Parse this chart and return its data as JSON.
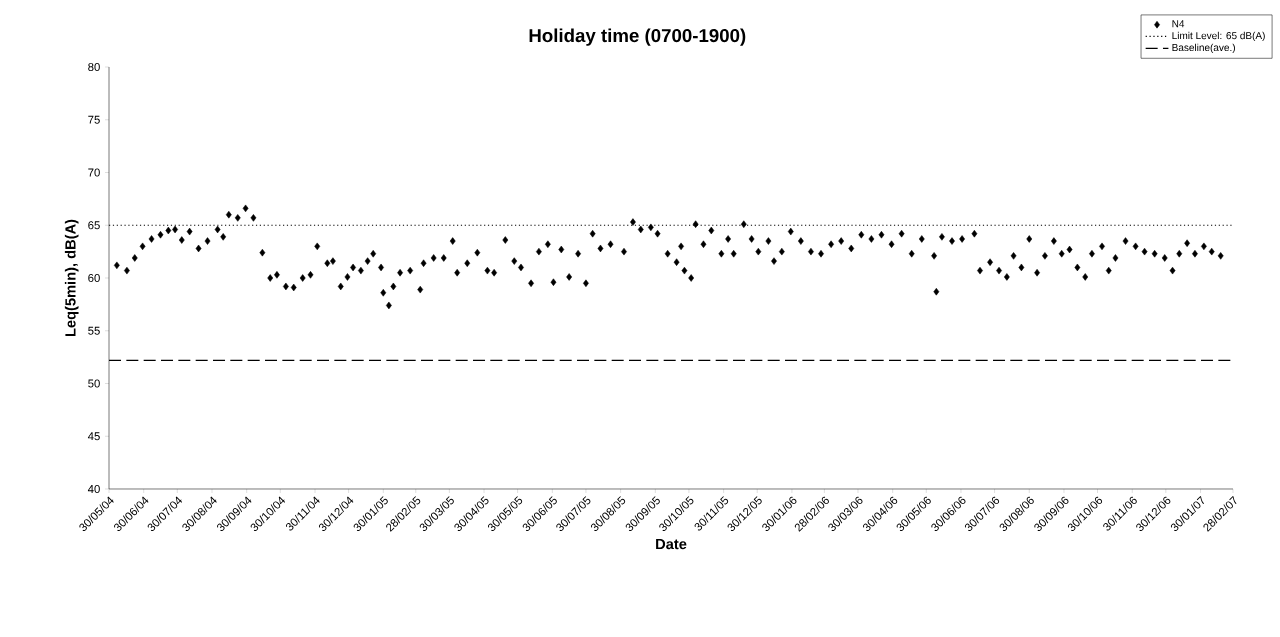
{
  "chart_data": {
    "type": "scatter",
    "title": "Holiday time (0700-1900)",
    "xlabel": "Date",
    "ylabel": "Leq(5min), dB(A)",
    "xlim": [
      "2004-05-30",
      "2007-02-28"
    ],
    "xticks": [
      {
        "value": "2004-05-30",
        "label": "30/05/04"
      },
      {
        "value": "2004-06-30",
        "label": "30/06/04"
      },
      {
        "value": "2004-07-30",
        "label": "30/07/04"
      },
      {
        "value": "2004-08-30",
        "label": "30/08/04"
      },
      {
        "value": "2004-09-30",
        "label": "30/09/04"
      },
      {
        "value": "2004-10-30",
        "label": "30/10/04"
      },
      {
        "value": "2004-11-30",
        "label": "30/11/04"
      },
      {
        "value": "2004-12-30",
        "label": "30/12/04"
      },
      {
        "value": "2005-01-30",
        "label": "30/01/05"
      },
      {
        "value": "2005-02-28",
        "label": "28/02/05"
      },
      {
        "value": "2005-03-30",
        "label": "30/03/05"
      },
      {
        "value": "2005-04-30",
        "label": "30/04/05"
      },
      {
        "value": "2005-05-30",
        "label": "30/05/05"
      },
      {
        "value": "2005-06-30",
        "label": "30/06/05"
      },
      {
        "value": "2005-07-30",
        "label": "30/07/05"
      },
      {
        "value": "2005-08-30",
        "label": "30/08/05"
      },
      {
        "value": "2005-09-30",
        "label": "30/09/05"
      },
      {
        "value": "2005-10-30",
        "label": "30/10/05"
      },
      {
        "value": "2005-11-30",
        "label": "30/11/05"
      },
      {
        "value": "2005-12-30",
        "label": "30/12/05"
      },
      {
        "value": "2006-01-30",
        "label": "30/01/06"
      },
      {
        "value": "2006-02-28",
        "label": "28/02/06"
      },
      {
        "value": "2006-03-30",
        "label": "30/03/06"
      },
      {
        "value": "2006-04-30",
        "label": "30/04/06"
      },
      {
        "value": "2006-05-30",
        "label": "30/05/06"
      },
      {
        "value": "2006-06-30",
        "label": "30/06/06"
      },
      {
        "value": "2006-07-30",
        "label": "30/07/06"
      },
      {
        "value": "2006-08-30",
        "label": "30/08/06"
      },
      {
        "value": "2006-09-30",
        "label": "30/09/06"
      },
      {
        "value": "2006-10-30",
        "label": "30/10/06"
      },
      {
        "value": "2006-11-30",
        "label": "30/11/06"
      },
      {
        "value": "2006-12-30",
        "label": "30/12/06"
      },
      {
        "value": "2007-01-30",
        "label": "30/01/07"
      },
      {
        "value": "2007-02-28",
        "label": "28/02/07"
      }
    ],
    "ylim": [
      40,
      80
    ],
    "yticks": [
      40,
      45,
      50,
      55,
      60,
      65,
      70,
      75,
      80
    ],
    "legend": "top right",
    "marker": "diamond",
    "ref_lines": [
      {
        "axis": "y",
        "value": 65,
        "label": "Limit Level: 65 dB(A)",
        "color": "#000000",
        "line_style": "dotted"
      },
      {
        "axis": "y",
        "value": 52.2,
        "label": "Baseline(ave.)",
        "color": "#000000",
        "line_style": "dashed"
      }
    ],
    "series": [
      {
        "name": "N4",
        "color": "#000000",
        "x": [
          "2004-06-06",
          "2004-06-15",
          "2004-06-22",
          "2004-06-29",
          "2004-07-07",
          "2004-07-15",
          "2004-07-22",
          "2004-07-28",
          "2004-08-03",
          "2004-08-10",
          "2004-08-18",
          "2004-08-26",
          "2004-09-04",
          "2004-09-09",
          "2004-09-14",
          "2004-09-22",
          "2004-09-29",
          "2004-10-06",
          "2004-10-14",
          "2004-10-21",
          "2004-10-27",
          "2004-11-04",
          "2004-11-11",
          "2004-11-19",
          "2004-11-26",
          "2004-12-02",
          "2004-12-11",
          "2004-12-16",
          "2004-12-23",
          "2004-12-29",
          "2005-01-03",
          "2005-01-10",
          "2005-01-16",
          "2005-01-21",
          "2005-01-28",
          "2005-01-30",
          "2005-02-04",
          "2005-02-08",
          "2005-02-14",
          "2005-02-23",
          "2005-03-04",
          "2005-03-07",
          "2005-03-16",
          "2005-03-25",
          "2005-04-02",
          "2005-04-06",
          "2005-04-15",
          "2005-04-24",
          "2005-05-03",
          "2005-05-09",
          "2005-05-19",
          "2005-05-27",
          "2005-06-02",
          "2005-06-11",
          "2005-06-18",
          "2005-06-26",
          "2005-07-01",
          "2005-07-08",
          "2005-07-15",
          "2005-07-23",
          "2005-07-30",
          "2005-08-05",
          "2005-08-12",
          "2005-08-21",
          "2005-09-02",
          "2005-09-10",
          "2005-09-17",
          "2005-09-26",
          "2005-10-02",
          "2005-10-11",
          "2005-10-19",
          "2005-10-23",
          "2005-10-26",
          "2005-11-01",
          "2005-11-05",
          "2005-11-12",
          "2005-11-19",
          "2005-11-28",
          "2005-12-04",
          "2005-12-09",
          "2005-12-18",
          "2005-12-25",
          "2005-12-31",
          "2006-01-09",
          "2006-01-14",
          "2006-01-21",
          "2006-01-29",
          "2006-02-07",
          "2006-02-16",
          "2006-02-25",
          "2006-03-06",
          "2006-03-15",
          "2006-03-24",
          "2006-04-02",
          "2006-04-11",
          "2006-04-20",
          "2006-04-29",
          "2006-05-08",
          "2006-05-17",
          "2006-05-26",
          "2006-06-06",
          "2006-06-08",
          "2006-06-13",
          "2006-06-22",
          "2006-07-01",
          "2006-07-12",
          "2006-07-17",
          "2006-07-26",
          "2006-08-03",
          "2006-08-10",
          "2006-08-16",
          "2006-08-23",
          "2006-08-30",
          "2006-09-06",
          "2006-09-13",
          "2006-09-21",
          "2006-09-28",
          "2006-10-05",
          "2006-10-12",
          "2006-10-19",
          "2006-10-25",
          "2006-11-03",
          "2006-11-09",
          "2006-11-15",
          "2006-11-24",
          "2006-12-03",
          "2006-12-11",
          "2006-12-20",
          "2006-12-29",
          "2007-01-05",
          "2007-01-11",
          "2007-01-18",
          "2007-01-25",
          "2007-02-02",
          "2007-02-09",
          "2007-02-17"
        ],
        "values": [
          61.2,
          60.7,
          61.9,
          63.0,
          63.7,
          64.1,
          64.5,
          64.6,
          63.6,
          64.4,
          62.8,
          63.5,
          64.6,
          63.9,
          66.0,
          65.7,
          66.6,
          65.7,
          62.4,
          60.0,
          60.3,
          59.2,
          59.1,
          60.0,
          60.3,
          63.0,
          61.4,
          61.6,
          59.2,
          60.1,
          61.0,
          60.7,
          61.6,
          62.3,
          61.0,
          58.6,
          57.4,
          59.2,
          60.5,
          60.7,
          58.9,
          61.4,
          61.9,
          61.9,
          63.5,
          60.5,
          61.4,
          62.4,
          60.7,
          60.5,
          63.6,
          61.6,
          61.0,
          59.5,
          62.5,
          63.2,
          59.6,
          62.7,
          60.1,
          62.3,
          59.5,
          64.2,
          62.8,
          63.2,
          62.5,
          65.3,
          64.6,
          64.8,
          64.2,
          62.3,
          61.5,
          63.0,
          60.7,
          60.0,
          65.1,
          63.2,
          64.5,
          62.3,
          63.7,
          62.3,
          65.1,
          63.7,
          62.5,
          63.5,
          61.6,
          62.5,
          64.4,
          63.5,
          62.5,
          62.3,
          63.2,
          63.5,
          62.8,
          64.1,
          63.7,
          64.1,
          63.2,
          64.2,
          62.3,
          63.7,
          62.1,
          58.7,
          63.9,
          63.5,
          63.7,
          64.2,
          60.7,
          61.5,
          60.7,
          60.1,
          62.1,
          61.0,
          63.7,
          60.5,
          62.1,
          63.5,
          62.3,
          62.7,
          61.0,
          60.1,
          62.3,
          63.0,
          60.7,
          61.9,
          63.5,
          63.0,
          62.5,
          62.3,
          61.9,
          60.7,
          62.3,
          63.3,
          62.3,
          63.0,
          62.5,
          62.1
        ]
      }
    ]
  }
}
